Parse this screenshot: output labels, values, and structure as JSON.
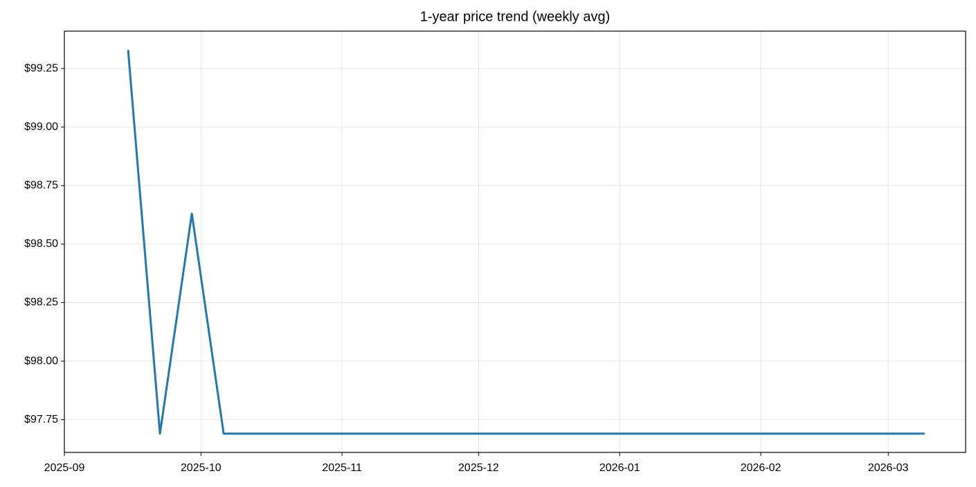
{
  "chart_data": {
    "type": "line",
    "title": "1-year price trend (weekly avg)",
    "x": [
      "2025-09-15",
      "2025-09-22",
      "2025-09-29",
      "2025-10-06",
      "2025-10-13",
      "2025-10-20",
      "2025-10-27",
      "2025-11-03",
      "2025-11-10",
      "2025-11-17",
      "2025-11-24",
      "2025-12-01",
      "2025-12-08",
      "2025-12-15",
      "2025-12-22",
      "2025-12-29",
      "2026-01-05",
      "2026-01-12",
      "2026-01-19",
      "2026-01-26",
      "2026-02-02",
      "2026-02-09",
      "2026-02-16",
      "2026-02-23",
      "2026-03-02",
      "2026-03-09"
    ],
    "series": [
      {
        "color": "#1f77b4",
        "values": [
          99.33,
          97.69,
          98.63,
          97.69,
          97.69,
          97.69,
          97.69,
          97.69,
          97.69,
          97.69,
          97.69,
          97.69,
          97.69,
          97.69,
          97.69,
          97.69,
          97.69,
          97.69,
          97.69,
          97.69,
          97.69,
          97.69,
          97.69,
          97.69,
          97.69,
          97.69
        ]
      }
    ],
    "xlim": [
      "2025-09-01",
      "2026-03-18"
    ],
    "xticks": [
      "2025-09",
      "2025-10",
      "2025-11",
      "2025-12",
      "2026-01",
      "2026-02",
      "2026-03"
    ],
    "ylim": [
      97.61,
      99.41
    ],
    "yticks": [
      {
        "value": 97.75,
        "label": "$97.75"
      },
      {
        "value": 98.0,
        "label": "$98.00"
      },
      {
        "value": 98.25,
        "label": "$98.25"
      },
      {
        "value": 98.5,
        "label": "$98.50"
      },
      {
        "value": 98.75,
        "label": "$98.75"
      },
      {
        "value": 99.0,
        "label": "$99.00"
      },
      {
        "value": 99.25,
        "label": "$99.25"
      }
    ],
    "grid": true
  }
}
